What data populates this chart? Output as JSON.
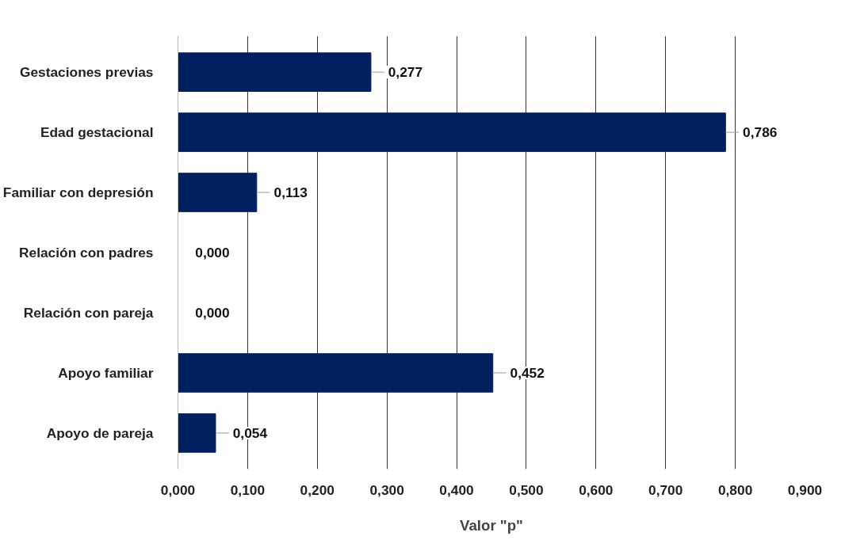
{
  "chart_data": {
    "type": "bar",
    "orientation": "horizontal",
    "xlabel": "Valor \"p\"",
    "categories": [
      "Gestaciones previas",
      "Edad gestacional",
      "Familiar con depresión",
      "Relación con padres",
      "Relación con pareja",
      "Apoyo familiar",
      "Apoyo de pareja"
    ],
    "values": [
      0.277,
      0.786,
      0.113,
      0,
      0,
      0.452,
      0.054
    ],
    "value_labels": [
      "0,277",
      "0,786",
      "0,113",
      "0,000",
      "0,000",
      "0,452",
      "0,054"
    ],
    "color": "#002060",
    "xlim": [
      0,
      0.9
    ],
    "xticks": [
      {
        "value": 0,
        "label": "0,000"
      },
      {
        "value": 0.1,
        "label": "0,100"
      },
      {
        "value": 0.2,
        "label": "0,200"
      },
      {
        "value": 0.3,
        "label": "0,300"
      },
      {
        "value": 0.4,
        "label": "0,400"
      },
      {
        "value": 0.5,
        "label": "0,500"
      },
      {
        "value": 0.6,
        "label": "0,600"
      },
      {
        "value": 0.7,
        "label": "0,700"
      },
      {
        "value": 0.8,
        "label": "0,800"
      },
      {
        "value": 0.9,
        "label": "0,900"
      }
    ],
    "grid": "x"
  }
}
